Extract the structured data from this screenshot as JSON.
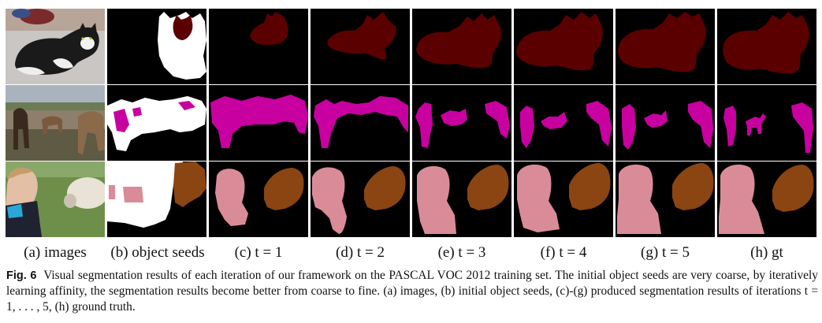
{
  "figure": {
    "column_labels": [
      "(a) images",
      "(b) object seeds",
      "(c) t = 1",
      "(d) t = 2",
      "(e) t = 3",
      "(f) t = 4",
      "(g) t = 5",
      "(h) gt"
    ],
    "rows": [
      {
        "name": "cat",
        "class_color": "#5a0000",
        "seed_color": "#ffffff"
      },
      {
        "name": "horses",
        "class_color": "#c800a0",
        "seed_color": "#ffffff"
      },
      {
        "name": "person-sheep",
        "class_colors": [
          "#d98c97",
          "#8a4512"
        ]
      }
    ]
  },
  "caption": {
    "label": "Fig. 6",
    "text": "Visual segmentation results of each iteration of our framework on the PASCAL VOC 2012 training set. The initial object seeds are very coarse, by iteratively learning affinity, the segmentation results become better from coarse to fine. (a) images, (b) initial object seeds, (c)-(g) produced segmentation results of iterations t = 1, . . . , 5, (h) ground truth."
  }
}
